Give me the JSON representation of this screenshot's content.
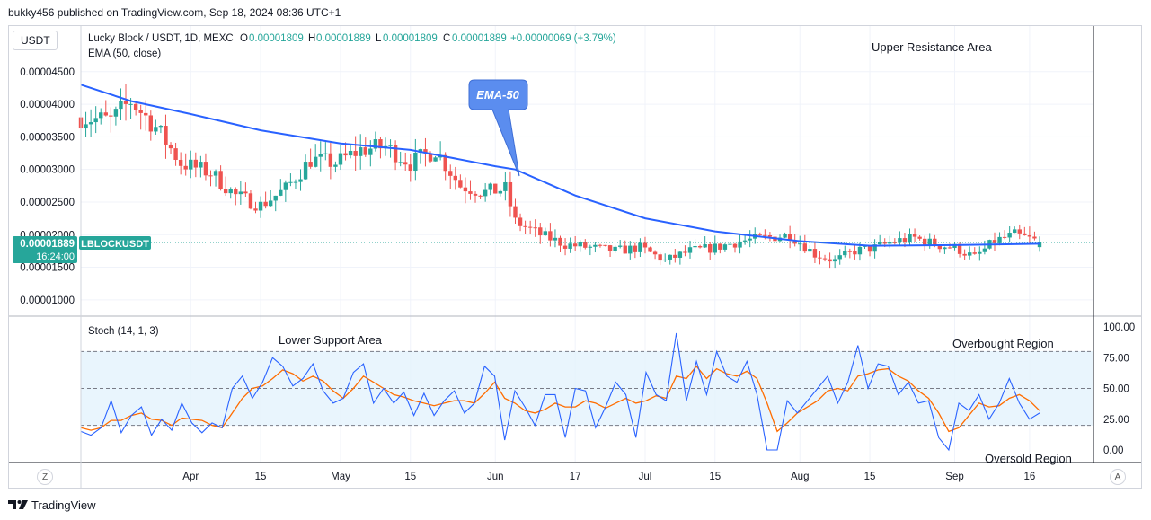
{
  "header": {
    "published": "bukky456 published on TradingView.com, Sep 18, 2024 08:36 UTC+1"
  },
  "symbol_button": "USDT",
  "legend": {
    "title": "Lucky Block / USDT, 1D, MEXC",
    "o_label": "O",
    "o_value": "0.00001809",
    "h_label": "H",
    "h_value": "0.00001889",
    "l_label": "L",
    "l_value": "0.00001809",
    "c_label": "C",
    "c_value": "0.00001889",
    "change": "+0.00000069 (+3.79%)",
    "ema_label": "EMA (50, close)",
    "stoch_label": "Stoch (14, 1, 3)"
  },
  "annotations": {
    "upper_resistance": "Upper Resistance Area",
    "ema_callout": "EMA-50",
    "lower_support": "Lower Support Area",
    "overbought": "Overbought Region",
    "oversold": "Oversold Region"
  },
  "price_tag": {
    "price": "0.00001889",
    "symbol": "LBLOCKUSDT",
    "countdown": "16:24:00"
  },
  "footer": {
    "brand": "TradingView"
  },
  "scale_buttons": {
    "left": "Z",
    "right": "A"
  },
  "colors": {
    "up": "#26a69a",
    "down": "#ef5350",
    "ema": "#2962ff",
    "stoch_k": "#2962ff",
    "stoch_d": "#ff6d00",
    "band": "#e3f2fd",
    "callout": "#5b8def"
  },
  "chart_data": [
    {
      "type": "candlestick",
      "title": "Lucky Block / USDT, 1D, MEXC",
      "ylim": [
        7.5e-06,
        5.2e-05
      ],
      "y_ticks": [
        "0.00004500",
        "0.00004000",
        "0.00003500",
        "0.00003000",
        "0.00002500",
        "0.00002000",
        "0.00001500",
        "0.00001000"
      ],
      "y_tick_values": [
        4.5e-05,
        4e-05,
        3.5e-05,
        3e-05,
        2.5e-05,
        2e-05,
        1.5e-05,
        1e-05
      ],
      "x_ticks": [
        "Apr",
        "15",
        "May",
        "15",
        "Jun",
        "17",
        "Jul",
        "15",
        "Aug",
        "15",
        "Sep",
        "16"
      ],
      "x_tick_dates": [
        "2024-04-01",
        "2024-04-15",
        "2024-05-01",
        "2024-05-15",
        "2024-06-01",
        "2024-06-17",
        "2024-07-01",
        "2024-07-15",
        "2024-08-01",
        "2024-08-15",
        "2024-09-01",
        "2024-09-16"
      ],
      "x_range": [
        "2024-03-10",
        "2024-09-18"
      ],
      "close_path": [
        [
          "2024-03-10",
          3.8e-05
        ],
        [
          "2024-03-16",
          3.75e-05
        ],
        [
          "2024-03-20",
          4.05e-05
        ],
        [
          "2024-03-25",
          3.65e-05
        ],
        [
          "2024-03-30",
          3.1e-05
        ],
        [
          "2024-04-05",
          2.95e-05
        ],
        [
          "2024-04-10",
          2.6e-05
        ],
        [
          "2024-04-15",
          2.45e-05
        ],
        [
          "2024-04-20",
          2.7e-05
        ],
        [
          "2024-04-25",
          3.15e-05
        ],
        [
          "2024-04-30",
          3.1e-05
        ],
        [
          "2024-05-05",
          3.3e-05
        ],
        [
          "2024-05-10",
          3.35e-05
        ],
        [
          "2024-05-15",
          3.1e-05
        ],
        [
          "2024-05-20",
          3.3e-05
        ],
        [
          "2024-05-25",
          2.75e-05
        ],
        [
          "2024-05-30",
          2.65e-05
        ],
        [
          "2024-06-03",
          2.7e-05
        ],
        [
          "2024-06-05",
          2.2e-05
        ],
        [
          "2024-06-10",
          2e-05
        ],
        [
          "2024-06-15",
          1.85e-05
        ],
        [
          "2024-06-20",
          1.8e-05
        ],
        [
          "2024-06-25",
          1.75e-05
        ],
        [
          "2024-06-30",
          1.8e-05
        ],
        [
          "2024-07-05",
          1.6e-05
        ],
        [
          "2024-07-10",
          1.75e-05
        ],
        [
          "2024-07-15",
          1.8e-05
        ],
        [
          "2024-07-20",
          1.9e-05
        ],
        [
          "2024-07-25",
          1.95e-05
        ],
        [
          "2024-07-30",
          2e-05
        ],
        [
          "2024-08-04",
          1.7e-05
        ],
        [
          "2024-08-08",
          1.6e-05
        ],
        [
          "2024-08-12",
          1.75e-05
        ],
        [
          "2024-08-16",
          1.8e-05
        ],
        [
          "2024-08-20",
          1.9e-05
        ],
        [
          "2024-08-24",
          1.95e-05
        ],
        [
          "2024-08-28",
          1.85e-05
        ],
        [
          "2024-09-01",
          1.8e-05
        ],
        [
          "2024-09-05",
          1.65e-05
        ],
        [
          "2024-09-09",
          1.9e-05
        ],
        [
          "2024-09-13",
          2e-05
        ],
        [
          "2024-09-18",
          1.889e-05
        ]
      ],
      "ema_50": [
        [
          "2024-03-10",
          4.3e-05
        ],
        [
          "2024-03-20",
          4.05e-05
        ],
        [
          "2024-04-01",
          3.85e-05
        ],
        [
          "2024-04-15",
          3.6e-05
        ],
        [
          "2024-05-01",
          3.4e-05
        ],
        [
          "2024-05-15",
          3.3e-05
        ],
        [
          "2024-06-01",
          3.05e-05
        ],
        [
          "2024-06-05",
          3e-05
        ],
        [
          "2024-06-17",
          2.6e-05
        ],
        [
          "2024-07-01",
          2.25e-05
        ],
        [
          "2024-07-15",
          2.05e-05
        ],
        [
          "2024-08-01",
          1.9e-05
        ],
        [
          "2024-08-15",
          1.83e-05
        ],
        [
          "2024-09-01",
          1.84e-05
        ],
        [
          "2024-09-18",
          1.86e-05
        ]
      ],
      "last_price": 1.889e-05
    },
    {
      "type": "line",
      "title": "Stoch (14, 1, 3)",
      "ylim": [
        0,
        100
      ],
      "y_ticks": [
        "100.00",
        "75.00",
        "50.00",
        "25.00",
        "0.00"
      ],
      "y_tick_values": [
        100,
        75,
        50,
        25,
        0
      ],
      "levels": [
        80,
        50,
        20
      ],
      "series": [
        {
          "name": "%K",
          "values": [
            15,
            12,
            18,
            40,
            14,
            28,
            35,
            12,
            25,
            16,
            38,
            22,
            14,
            22,
            18,
            50,
            60,
            42,
            55,
            75,
            68,
            52,
            58,
            70,
            48,
            38,
            42,
            63,
            70,
            38,
            50,
            38,
            47,
            28,
            46,
            28,
            40,
            48,
            30,
            38,
            68,
            60,
            8,
            48,
            35,
            20,
            45,
            45,
            10,
            50,
            48,
            18,
            35,
            55,
            45,
            10,
            63,
            45,
            40,
            95,
            40,
            72,
            45,
            80,
            60,
            55,
            72,
            45,
            0,
            0,
            40,
            30,
            40,
            50,
            60,
            38,
            55,
            85,
            50,
            70,
            68,
            45,
            55,
            38,
            40,
            10,
            0,
            38,
            32,
            45,
            25,
            38,
            58,
            38,
            25,
            30
          ]
        },
        {
          "name": "%D",
          "values": [
            18,
            16,
            18,
            24,
            24,
            28,
            30,
            25,
            24,
            20,
            26,
            25,
            24,
            20,
            18,
            30,
            42,
            50,
            52,
            58,
            65,
            62,
            56,
            60,
            56,
            48,
            42,
            50,
            60,
            55,
            50,
            45,
            43,
            40,
            38,
            36,
            38,
            40,
            40,
            38,
            46,
            55,
            42,
            38,
            32,
            30,
            33,
            38,
            35,
            35,
            40,
            38,
            34,
            38,
            42,
            38,
            40,
            44,
            42,
            60,
            58,
            68,
            58,
            66,
            62,
            60,
            64,
            58,
            38,
            15,
            22,
            30,
            35,
            40,
            48,
            50,
            48,
            60,
            62,
            65,
            66,
            60,
            56,
            48,
            42,
            30,
            15,
            18,
            28,
            38,
            35,
            36,
            42,
            45,
            40,
            32
          ]
        }
      ]
    }
  ]
}
